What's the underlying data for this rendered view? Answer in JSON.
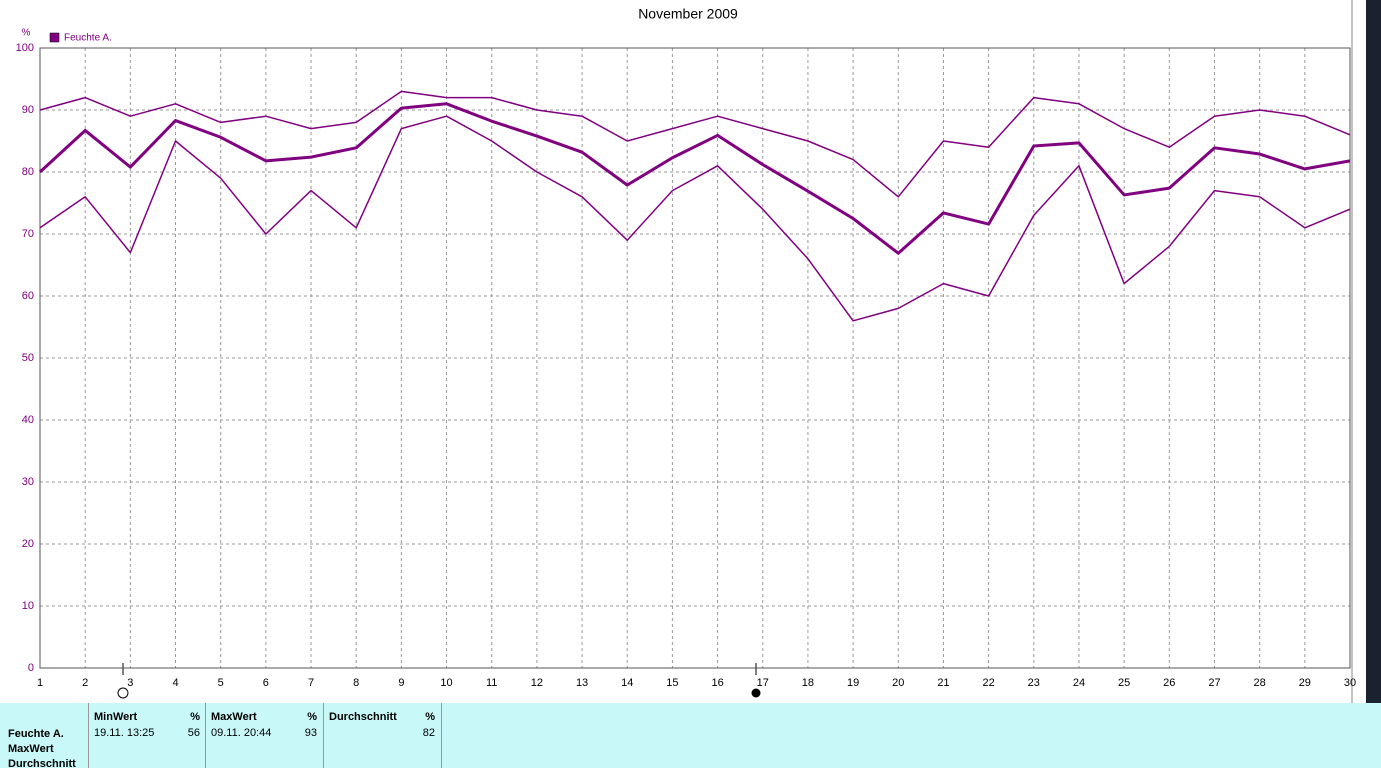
{
  "chart_data": {
    "type": "line",
    "title": "November 2009",
    "y_label": "%",
    "x": [
      1,
      2,
      3,
      4,
      5,
      6,
      7,
      8,
      9,
      10,
      11,
      12,
      13,
      14,
      15,
      16,
      17,
      18,
      19,
      20,
      21,
      22,
      23,
      24,
      25,
      26,
      27,
      28,
      29,
      30
    ],
    "xlim": [
      1,
      30
    ],
    "xticks": [
      1,
      2,
      3,
      4,
      5,
      6,
      7,
      8,
      9,
      10,
      11,
      12,
      13,
      14,
      15,
      16,
      17,
      18,
      19,
      20,
      21,
      22,
      23,
      24,
      25,
      26,
      27,
      28,
      29,
      30
    ],
    "ylim": [
      0,
      100
    ],
    "yticks": [
      0,
      10,
      20,
      30,
      40,
      50,
      60,
      70,
      80,
      90,
      100
    ],
    "grid": true,
    "series": [
      {
        "color": "#800080",
        "line_width": 1.5,
        "values": [
          90,
          92,
          89,
          91,
          88,
          89,
          87,
          88,
          93,
          92,
          92,
          90,
          89,
          85,
          87,
          89,
          87,
          85,
          82,
          76,
          85,
          84,
          92,
          91,
          87,
          84,
          89,
          90,
          89,
          86
        ]
      },
      {
        "name": "Feuchte A.",
        "color": "#800080",
        "line_width": 3,
        "values": [
          80,
          86.7,
          80.8,
          88.3,
          85.6,
          81.8,
          82.4,
          83.9,
          90.3,
          91,
          88.2,
          85.8,
          83.2,
          77.9,
          82.3,
          85.9,
          81.2,
          76.9,
          72.5,
          66.9,
          73.4,
          71.6,
          84.2,
          84.7,
          76.3,
          77.4,
          83.9,
          82.9,
          80.5,
          81.8
        ]
      },
      {
        "color": "#800080",
        "line_width": 1.5,
        "values": [
          71,
          76,
          67,
          85,
          79,
          70,
          77,
          71,
          87,
          89,
          85,
          80,
          76,
          69,
          77,
          81,
          74,
          66,
          56,
          58,
          62,
          60,
          73,
          81,
          62,
          68,
          77,
          76,
          71,
          74
        ]
      }
    ]
  },
  "table": {
    "row_labels": [
      "Feuchte A.",
      "MaxWert",
      "Durchschnitt"
    ],
    "columns": [
      {
        "header": "MinWert",
        "unit": "%",
        "time": "19.11.  13:25",
        "value": 56
      },
      {
        "header": "MaxWert",
        "unit": "%",
        "time": "09.11.  20:44",
        "value": 93
      },
      {
        "header": "Durchschnitt",
        "unit": "%",
        "value": 82
      }
    ]
  }
}
